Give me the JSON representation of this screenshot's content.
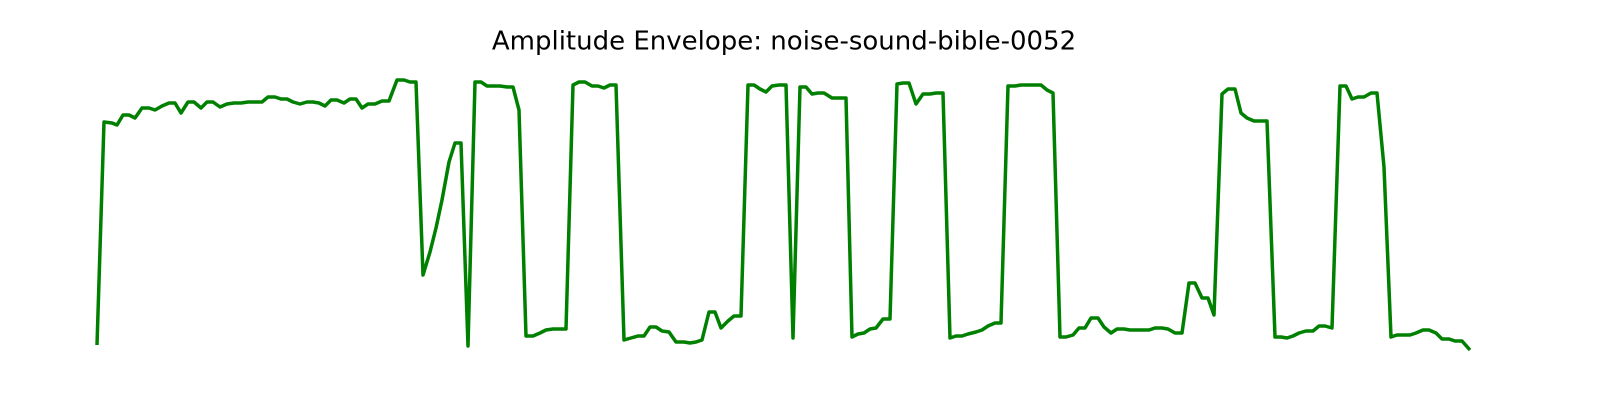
{
  "chart_data": {
    "type": "line",
    "title": "Amplitude Envelope: noise-sound-bible-0052",
    "color": "#008000",
    "xlim": [
      0,
      1373
    ],
    "ylim": [
      -5,
      265
    ],
    "x": [
      0,
      7,
      15,
      20,
      26,
      32,
      38,
      45,
      52,
      58,
      65,
      72,
      78,
      84,
      91,
      97,
      104,
      110,
      116,
      123,
      130,
      137,
      144,
      151,
      157,
      165,
      171,
      178,
      184,
      190,
      196,
      203,
      210,
      216,
      222,
      228,
      234,
      240,
      247,
      253,
      259,
      265,
      271,
      278,
      285,
      292,
      300,
      307,
      313,
      319,
      326,
      333,
      339,
      345,
      352,
      358,
      364,
      371,
      378,
      384,
      390,
      397,
      403,
      410,
      416,
      422,
      429,
      436,
      443,
      449,
      456,
      463,
      469,
      476,
      482,
      488,
      495,
      501,
      507,
      513,
      519,
      527,
      534,
      541,
      547,
      553,
      559,
      565,
      572,
      579,
      587,
      593,
      599,
      605,
      612,
      618,
      624,
      631,
      637,
      644,
      651,
      657,
      663,
      669,
      675,
      682,
      689,
      696,
      703,
      709,
      715,
      721,
      727,
      735,
      743,
      749,
      755,
      761,
      767,
      773,
      779,
      786,
      793,
      800,
      806,
      812,
      819,
      826,
      833,
      839,
      846,
      853,
      859,
      865,
      871,
      879,
      885,
      891,
      898,
      904,
      911,
      918,
      924,
      931,
      938,
      944,
      950,
      956,
      963,
      969,
      976,
      982,
      988,
      994,
      1001,
      1007,
      1014,
      1020,
      1027,
      1033,
      1040,
      1046,
      1052,
      1058,
      1065,
      1071,
      1078,
      1085,
      1092,
      1098,
      1105,
      1111,
      1117,
      1125,
      1131,
      1138,
      1144,
      1150,
      1157,
      1163,
      1170,
      1178,
      1184,
      1190,
      1196,
      1202,
      1209,
      1216,
      1222,
      1228,
      1235,
      1243,
      1249,
      1255,
      1261,
      1267,
      1274,
      1280,
      1287,
      1294,
      1300,
      1307,
      1313,
      1319,
      1326,
      1332,
      1339,
      1345,
      1352,
      1358,
      1365,
      1373
    ],
    "values": [
      0,
      223,
      222,
      220,
      230,
      230,
      227,
      237,
      237,
      235,
      239,
      242,
      242,
      232,
      243,
      243,
      237,
      243,
      243,
      238,
      241,
      242,
      242,
      243,
      243,
      243,
      248,
      248,
      246,
      246,
      243,
      241,
      243,
      243,
      242,
      239,
      245,
      245,
      242,
      246,
      246,
      237,
      241,
      241,
      244,
      244,
      265,
      265,
      263,
      263,
      70,
      93,
      117,
      145,
      183,
      202,
      202,
      -1,
      263,
      263,
      259,
      259,
      259,
      258,
      258,
      235,
      9,
      9,
      12,
      15,
      16,
      16,
      16,
      260,
      263,
      263,
      259,
      259,
      257,
      260,
      260,
      5,
      7,
      9,
      9,
      18,
      18,
      14,
      13,
      3,
      3,
      2,
      3,
      5,
      33,
      33,
      17,
      24,
      29,
      29,
      260,
      260,
      256,
      253,
      259,
      260,
      260,
      7,
      258,
      258,
      251,
      252,
      252,
      247,
      247,
      247,
      8,
      11,
      12,
      16,
      17,
      26,
      26,
      261,
      262,
      262,
      241,
      251,
      251,
      252,
      252,
      7,
      9,
      9,
      11,
      13,
      15,
      19,
      22,
      22,
      259,
      259,
      260,
      260,
      260,
      260,
      255,
      252,
      8,
      8,
      10,
      17,
      17,
      27,
      27,
      18,
      12,
      16,
      16,
      15,
      15,
      15,
      15,
      17,
      17,
      16,
      12,
      12,
      62,
      62,
      47,
      47,
      30,
      251,
      256,
      256,
      232,
      227,
      224,
      224,
      224,
      8,
      8,
      7,
      9,
      12,
      14,
      14,
      19,
      19,
      17,
      259,
      259,
      246,
      248,
      248,
      252,
      252,
      178,
      8,
      10,
      10,
      10,
      12,
      15,
      15,
      12,
      6,
      6,
      4,
      4,
      -5
    ]
  }
}
